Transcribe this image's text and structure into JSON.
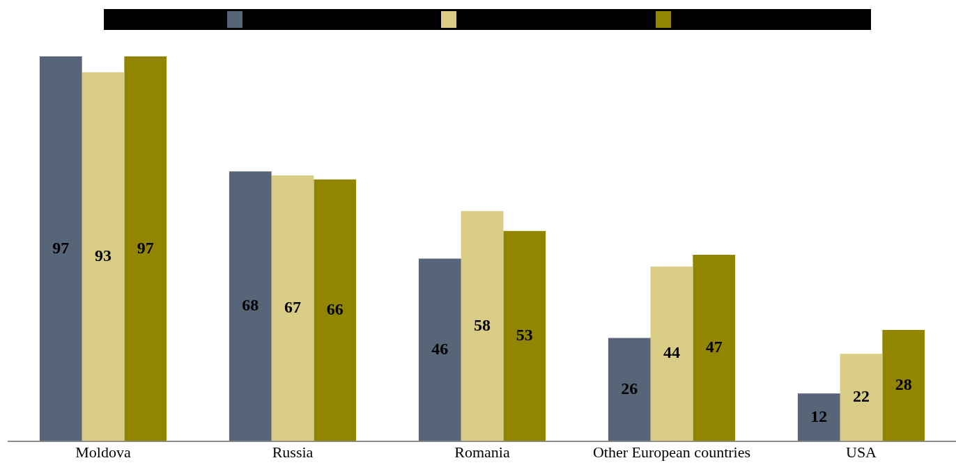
{
  "chart_data": {
    "type": "bar",
    "categories": [
      "Moldova",
      "Russia",
      "Romania",
      "Other European countries",
      "USA"
    ],
    "series": [
      {
        "color": "#566578",
        "values": [
          97,
          68,
          46,
          26,
          12
        ]
      },
      {
        "color": "#d9cd85",
        "values": [
          93,
          67,
          58,
          44,
          22
        ]
      },
      {
        "color": "#928500",
        "values": [
          97,
          66,
          53,
          47,
          28
        ]
      }
    ],
    "data_labels": true
  }
}
